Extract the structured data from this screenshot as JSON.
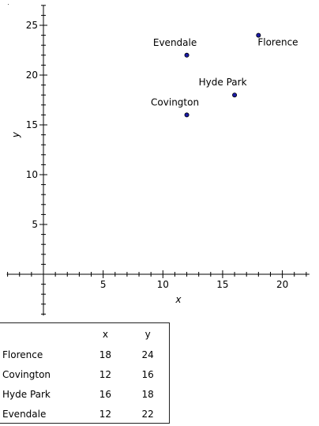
{
  "chart_data": {
    "type": "scatter",
    "xlabel": "x",
    "ylabel": "y",
    "xlim": [
      -3,
      22
    ],
    "ylim": [
      -4,
      27
    ],
    "x_ticks": [
      5,
      10,
      15,
      20
    ],
    "y_ticks": [
      5,
      10,
      15,
      20,
      25
    ],
    "grid": false,
    "points": [
      {
        "label": "Florence",
        "x": 18,
        "y": 24
      },
      {
        "label": "Covington",
        "x": 12,
        "y": 16
      },
      {
        "label": "Hyde Park",
        "x": 16,
        "y": 18
      },
      {
        "label": "Evendale",
        "x": 12,
        "y": 22
      }
    ],
    "colors": {
      "point_fill": "#1a1aa6",
      "axis": "#000000"
    }
  },
  "table": {
    "headers": [
      "",
      "x",
      "y"
    ],
    "rows": [
      [
        "Florence",
        "18",
        "24"
      ],
      [
        "Covington",
        "12",
        "16"
      ],
      [
        "Hyde Park",
        "16",
        "18"
      ],
      [
        "Evendale",
        "12",
        "22"
      ]
    ]
  }
}
